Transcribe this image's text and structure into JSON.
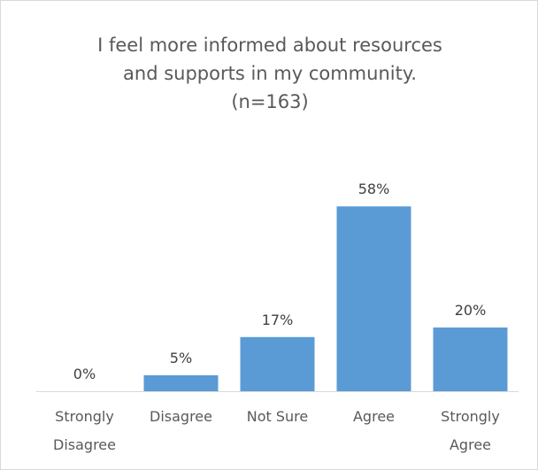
{
  "chart_data": {
    "type": "bar",
    "title": "I feel more informed about resources\nand supports in my community.\n(n=163)",
    "categories": [
      "Strongly\nDisagree",
      "Disagree",
      "Not Sure",
      "Agree",
      "Strongly\nAgree"
    ],
    "values": [
      0,
      5,
      17,
      58,
      20
    ],
    "data_labels": [
      "0%",
      "5%",
      "17%",
      "58%",
      "20%"
    ],
    "unit": "%",
    "ylim": [
      0,
      60
    ],
    "grid": false,
    "legend": "none",
    "bar_color": "#5b9bd5",
    "axis_color": "#d9d9d9"
  }
}
